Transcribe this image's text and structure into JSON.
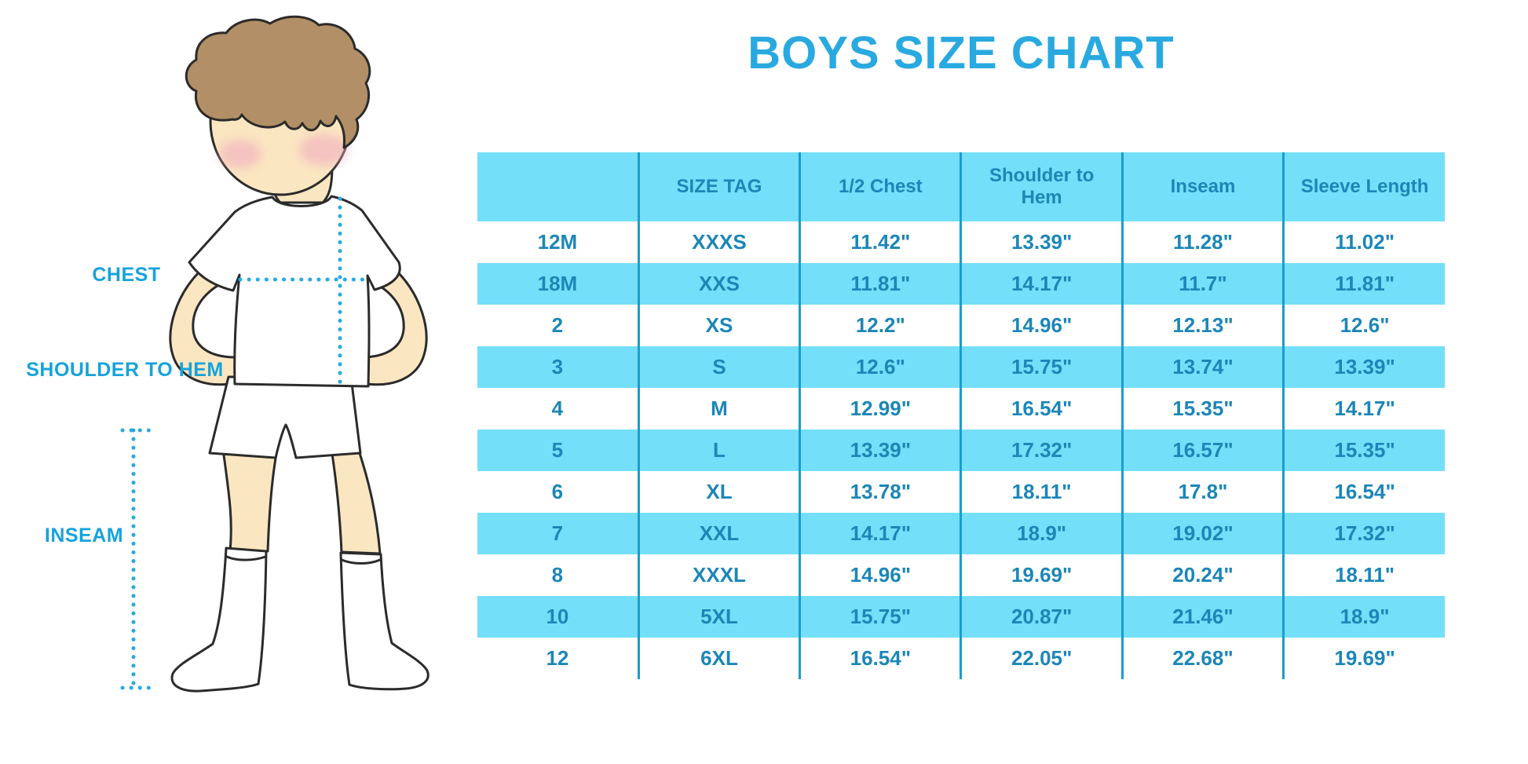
{
  "title": "BOYS SIZE CHART",
  "colors": {
    "title_blue": "#29A9E0",
    "cell_blue": "#74DFF8",
    "text_blue": "#1C86B8",
    "line_blue": "#1B9CD0",
    "label_blue": "#16A3DC",
    "dot_blue": "#2AA9E0",
    "skin": "#FAE6C1",
    "hair": "#B28F66",
    "blush": "#F2ACC0"
  },
  "diagram": {
    "labels": {
      "chest": "CHEST",
      "shoulder_to_hem": "SHOULDER TO HEM",
      "inseam": "INSEAM"
    }
  },
  "chart_data": {
    "type": "table",
    "title": "BOYS SIZE CHART",
    "columns": [
      "",
      "SIZE TAG",
      "1/2 Chest",
      "Shoulder to Hem",
      "Inseam",
      "Sleeve Length"
    ],
    "rows": [
      [
        "12M",
        "XXXS",
        "11.42\"",
        "13.39\"",
        "11.28\"",
        "11.02\""
      ],
      [
        "18M",
        "XXS",
        "11.81\"",
        "14.17\"",
        "11.7\"",
        "11.81\""
      ],
      [
        "2",
        "XS",
        "12.2\"",
        "14.96\"",
        "12.13\"",
        "12.6\""
      ],
      [
        "3",
        "S",
        "12.6\"",
        "15.75\"",
        "13.74\"",
        "13.39\""
      ],
      [
        "4",
        "M",
        "12.99\"",
        "16.54\"",
        "15.35\"",
        "14.17\""
      ],
      [
        "5",
        "L",
        "13.39\"",
        "17.32\"",
        "16.57\"",
        "15.35\""
      ],
      [
        "6",
        "XL",
        "13.78\"",
        "18.11\"",
        "17.8\"",
        "16.54\""
      ],
      [
        "7",
        "XXL",
        "14.17\"",
        "18.9\"",
        "19.02\"",
        "17.32\""
      ],
      [
        "8",
        "XXXL",
        "14.96\"",
        "19.69\"",
        "20.24\"",
        "18.11\""
      ],
      [
        "10",
        "5XL",
        "15.75\"",
        "20.87\"",
        "21.46\"",
        "18.9\""
      ],
      [
        "12",
        "6XL",
        "16.54\"",
        "22.05\"",
        "22.68\"",
        "19.69\""
      ]
    ]
  }
}
